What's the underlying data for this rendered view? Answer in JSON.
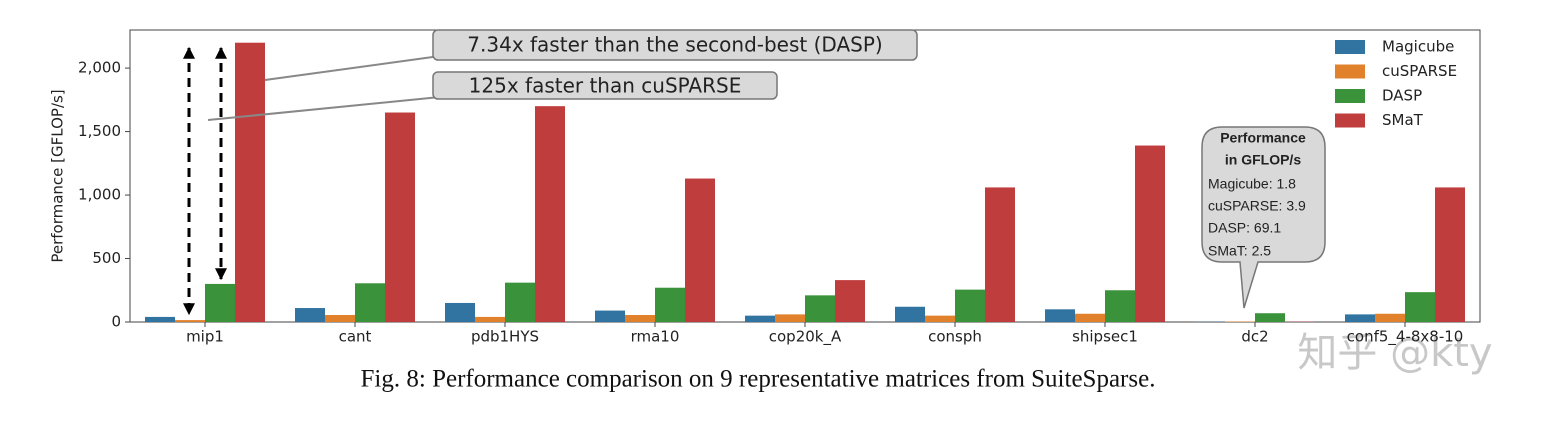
{
  "chart_data": {
    "type": "bar",
    "y_label": "Performance [GFLOP/s]",
    "categories": [
      "mip1",
      "cant",
      "pdb1HYS",
      "rma10",
      "cop20k_A",
      "consph",
      "shipsec1",
      "dc2",
      "conf5_4-8x8-10"
    ],
    "series": [
      {
        "name": "Magicube",
        "color": "#3274a1",
        "values": [
          40,
          110,
          150,
          90,
          50,
          120,
          100,
          1.8,
          60
        ]
      },
      {
        "name": "cuSPARSE",
        "color": "#e1812c",
        "values": [
          15,
          55,
          40,
          55,
          60,
          50,
          65,
          3.9,
          65
        ]
      },
      {
        "name": "DASP",
        "color": "#3a923a",
        "values": [
          300,
          305,
          310,
          270,
          210,
          255,
          250,
          69.1,
          235
        ]
      },
      {
        "name": "SMaT",
        "color": "#c03d3e",
        "values": [
          2200,
          1650,
          1700,
          1130,
          330,
          1060,
          1390,
          2.5,
          1060
        ]
      }
    ],
    "ylim": [
      0,
      2300
    ],
    "yticks": [
      0,
      500,
      {
        "value": 1000,
        "label": "1,000"
      },
      {
        "value": 1500,
        "label": "1,500"
      },
      {
        "value": 2000,
        "label": "2,000"
      }
    ],
    "legend": "upper right",
    "annotations": [
      "7.34x faster than the second-best (DASP)",
      "125x faster than cuSPARSE"
    ],
    "callout": [
      "Performance",
      "in GFLOP/s",
      "Magicube: 1.8",
      "cuSPARSE: 3.9",
      "DASP:  69.1",
      "SMaT: 2.5"
    ]
  },
  "caption": "Fig. 8: Performance comparison on 9 representative matrices from SuiteSparse.",
  "watermark": "知乎 @kty"
}
